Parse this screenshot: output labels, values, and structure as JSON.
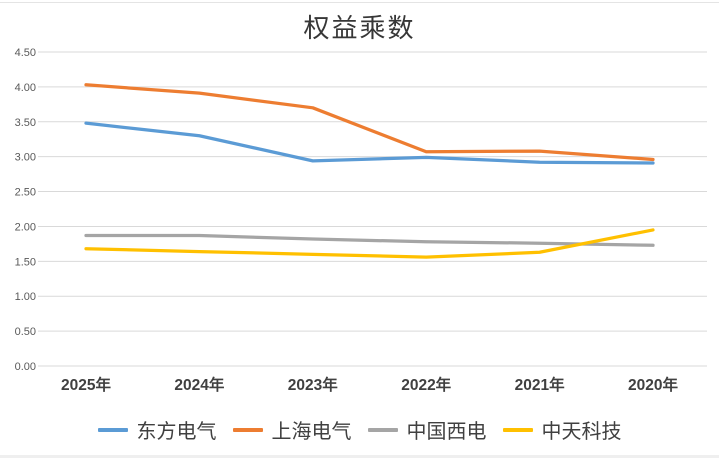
{
  "chart_data": {
    "type": "line",
    "title": "权益乘数",
    "categories": [
      "2025年",
      "2024年",
      "2023年",
      "2022年",
      "2021年",
      "2020年"
    ],
    "series": [
      {
        "name": "东方电气",
        "color": "#5B9BD5",
        "values": [
          3.48,
          3.3,
          2.94,
          2.99,
          2.92,
          2.91
        ]
      },
      {
        "name": "上海电气",
        "color": "#ED7D31",
        "values": [
          4.03,
          3.91,
          3.7,
          3.07,
          3.08,
          2.96
        ]
      },
      {
        "name": "中国西电",
        "color": "#A5A5A5",
        "values": [
          1.87,
          1.87,
          1.82,
          1.78,
          1.76,
          1.73
        ]
      },
      {
        "name": "中天科技",
        "color": "#FFC000",
        "values": [
          1.68,
          1.64,
          1.6,
          1.56,
          1.63,
          1.95
        ]
      }
    ],
    "xlabel": "",
    "ylabel": "",
    "ylim": [
      0,
      4.5
    ],
    "yticks": [
      4.5,
      4.0,
      3.5,
      3.0,
      2.5,
      2.0,
      1.5,
      1.0,
      0.5,
      0.0
    ],
    "ytick_format_decimals": 2,
    "grid": true,
    "gridline_color": "#d9d9d9",
    "legend_position": "bottom"
  }
}
